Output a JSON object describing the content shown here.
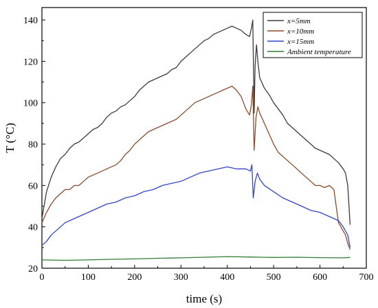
{
  "chart_data": {
    "type": "line",
    "xlabel": "time (s)",
    "ylabel": "T (°C)",
    "xlim": [
      0,
      700
    ],
    "ylim": [
      20,
      146
    ],
    "xticks": [
      0,
      100,
      200,
      300,
      400,
      500,
      600,
      700
    ],
    "yticks": [
      20,
      40,
      60,
      80,
      100,
      120,
      140
    ],
    "grid": false,
    "legend_position": "top-right",
    "series": [
      {
        "name": "x=5mm",
        "color": "#3a3a3a",
        "x": [
          0,
          10,
          20,
          30,
          40,
          50,
          60,
          70,
          80,
          90,
          100,
          110,
          120,
          130,
          140,
          150,
          160,
          170,
          180,
          190,
          200,
          210,
          220,
          230,
          240,
          250,
          260,
          270,
          280,
          290,
          300,
          310,
          320,
          330,
          340,
          350,
          360,
          370,
          380,
          390,
          400,
          410,
          420,
          430,
          440,
          448,
          452,
          455,
          458,
          460,
          463,
          466,
          470,
          480,
          490,
          500,
          510,
          520,
          530,
          540,
          550,
          560,
          570,
          580,
          590,
          600,
          610,
          620,
          630,
          640,
          650,
          655,
          660,
          665
        ],
        "y": [
          44,
          57,
          64,
          69,
          73,
          75,
          78,
          80,
          81,
          83,
          85,
          87,
          88,
          90,
          93,
          95,
          96,
          98,
          99,
          101,
          103,
          106,
          108,
          110,
          111,
          112,
          113,
          114,
          116,
          117,
          120,
          122,
          124,
          126,
          128,
          130,
          131,
          133,
          134,
          135,
          136,
          137,
          136,
          135,
          133,
          132,
          136,
          140,
          95,
          118,
          128,
          120,
          112,
          107,
          104,
          100,
          97,
          94,
          90,
          88,
          86,
          84,
          82,
          80,
          78,
          77,
          76,
          75,
          73,
          71,
          68,
          66,
          60,
          41
        ]
      },
      {
        "name": "x=10mm",
        "color": "#8b4a2b",
        "x": [
          0,
          10,
          20,
          30,
          40,
          50,
          60,
          70,
          80,
          90,
          100,
          110,
          120,
          130,
          140,
          150,
          160,
          170,
          180,
          190,
          200,
          210,
          220,
          230,
          240,
          250,
          260,
          270,
          280,
          290,
          300,
          310,
          320,
          330,
          340,
          350,
          360,
          370,
          380,
          390,
          400,
          410,
          420,
          430,
          440,
          448,
          452,
          455,
          458,
          462,
          466,
          470,
          480,
          490,
          500,
          510,
          520,
          530,
          540,
          550,
          560,
          570,
          580,
          590,
          600,
          610,
          620,
          630,
          640,
          650,
          655,
          660,
          665
        ],
        "y": [
          42,
          47,
          51,
          54,
          56,
          58,
          58,
          60,
          60,
          62,
          64,
          65,
          66,
          67,
          68,
          69,
          70,
          72,
          75,
          77,
          80,
          82,
          84,
          86,
          87,
          88,
          89,
          90,
          91,
          92,
          94,
          96,
          98,
          100,
          101,
          102,
          103,
          104,
          105,
          106,
          107,
          108,
          106,
          103,
          97,
          94,
          99,
          108,
          77,
          93,
          98,
          95,
          90,
          85,
          80,
          76,
          74,
          72,
          70,
          68,
          66,
          64,
          62,
          60,
          60,
          59,
          60,
          58,
          42,
          38,
          36,
          32,
          29
        ]
      },
      {
        "name": "x=15mm",
        "color": "#3045c8",
        "x": [
          0,
          10,
          20,
          30,
          40,
          50,
          60,
          70,
          80,
          90,
          100,
          120,
          140,
          160,
          180,
          200,
          220,
          240,
          260,
          280,
          300,
          320,
          340,
          360,
          380,
          400,
          420,
          440,
          450,
          453,
          456,
          460,
          465,
          470,
          480,
          500,
          520,
          540,
          560,
          580,
          600,
          620,
          640,
          650,
          655,
          660,
          665
        ],
        "y": [
          31,
          33,
          36,
          38,
          40,
          42,
          43,
          44,
          45,
          46,
          47,
          49,
          51,
          52,
          54,
          55,
          57,
          58,
          60,
          61,
          62,
          64,
          66,
          67,
          68,
          69,
          68,
          68,
          67,
          70,
          54,
          62,
          66,
          63,
          60,
          57,
          54,
          52,
          50,
          48,
          47,
          45,
          43,
          40,
          38,
          36,
          30
        ]
      },
      {
        "name": "Ambient temperature",
        "color": "#2e7d32",
        "x": [
          0,
          50,
          100,
          150,
          200,
          250,
          300,
          350,
          400,
          450,
          500,
          550,
          600,
          650,
          665
        ],
        "y": [
          24,
          23.8,
          24,
          24.3,
          24.5,
          24.8,
          25,
          25.3,
          25.6,
          25.4,
          25.2,
          25.3,
          25.1,
          25.0,
          25.2
        ]
      }
    ]
  }
}
